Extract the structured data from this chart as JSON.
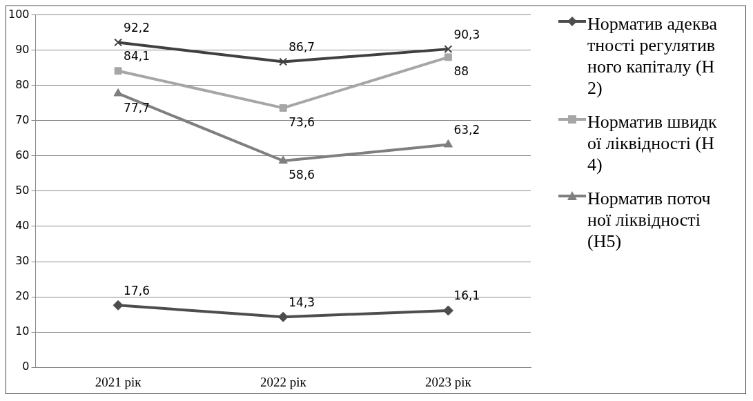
{
  "chart_data": {
    "type": "line",
    "categories": [
      "2021 рік",
      "2022 рік",
      "2023 рік"
    ],
    "series": [
      {
        "color": "#404040",
        "values": [
          92.2,
          86.7,
          90.3
        ],
        "value_labels": [
          "92,2",
          "86,7",
          "90,3"
        ],
        "marker": "cross"
      },
      {
        "name": "Норматив адекватності регулятивного капіталу (Н2)",
        "color": "#4d4d4d",
        "values": [
          17.6,
          14.3,
          16.1
        ],
        "value_labels": [
          "17,6",
          "14,3",
          "16,1"
        ],
        "marker": "diamond"
      },
      {
        "name": "Норматив швидкої ліквідності (Н4)",
        "color": "#a6a6a6",
        "values": [
          84.1,
          73.6,
          88
        ],
        "value_labels": [
          "84,1",
          "73,6",
          "88"
        ],
        "marker": "square"
      },
      {
        "name": "Норматив поточної ліквідності (Н5)",
        "color": "#7f7f7f",
        "values": [
          77.7,
          58.6,
          63.2
        ],
        "value_labels": [
          "77,7",
          "58,6",
          "63,2"
        ],
        "marker": "triangle"
      }
    ],
    "ylim": [
      0,
      100
    ],
    "yticks": [
      0,
      10,
      20,
      30,
      40,
      50,
      60,
      70,
      80,
      90,
      100
    ],
    "grid": "y",
    "legend": "right"
  }
}
